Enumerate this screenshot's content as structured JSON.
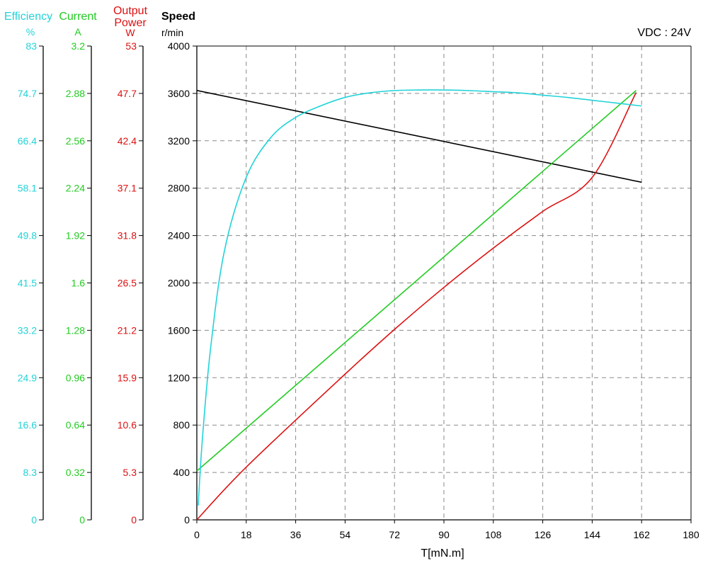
{
  "colors": {
    "efficiency": "#22d3d8",
    "current": "#22cc22",
    "power": "#dd1111",
    "speed": "#000000",
    "grid": "#8a8a8a"
  },
  "headers": {
    "efficiency": {
      "title": "Efficiency",
      "unit": "%"
    },
    "current": {
      "title": "Current",
      "unit": "A"
    },
    "power": {
      "title_line1": "Output",
      "title_line2": "Power",
      "unit": "W"
    },
    "speed": {
      "title": "Speed",
      "unit": "r/min"
    }
  },
  "vdc_label": "VDC : 24V",
  "chart_data": {
    "type": "line",
    "xlabel": "T[mN.m]",
    "xlim": [
      0,
      180
    ],
    "x_ticks": [
      "0",
      "18",
      "36",
      "54",
      "72",
      "90",
      "108",
      "126",
      "144",
      "162",
      "180"
    ],
    "axes": {
      "speed": {
        "label": "Speed",
        "unit": "r/min",
        "range": [
          0,
          4000
        ],
        "ticks": [
          "0",
          "400",
          "800",
          "1200",
          "1600",
          "2000",
          "2400",
          "2800",
          "3200",
          "3600",
          "4000"
        ]
      },
      "efficiency": {
        "label": "Efficiency",
        "unit": "%",
        "range": [
          0,
          83
        ],
        "ticks": [
          "0",
          "8.3",
          "16.6",
          "24.9",
          "33.2",
          "41.5",
          "49.8",
          "58.1",
          "66.4",
          "74.7",
          "83"
        ]
      },
      "current": {
        "label": "Current",
        "unit": "A",
        "range": [
          0,
          3.2
        ],
        "ticks": [
          "0",
          "0.32",
          "0.64",
          "0.96",
          "1.28",
          "1.6",
          "1.92",
          "2.24",
          "2.56",
          "2.88",
          "3.2"
        ]
      },
      "power": {
        "label": "Output Power",
        "unit": "W",
        "range": [
          0,
          53
        ],
        "ticks": [
          "0",
          "5.3",
          "10.6",
          "15.9",
          "21.2",
          "26.5",
          "31.8",
          "37.1",
          "42.4",
          "47.7",
          "53"
        ]
      }
    },
    "series": [
      {
        "axis": "speed",
        "color": "#000000",
        "x": [
          0,
          162
        ],
        "y": [
          3625,
          2850
        ]
      },
      {
        "axis": "current",
        "color": "#22cc22",
        "x": [
          0,
          160
        ],
        "y": [
          0.33,
          2.9
        ]
      },
      {
        "axis": "power",
        "color": "#dd1111",
        "x": [
          0,
          18,
          54,
          72,
          90,
          108,
          126,
          144,
          160
        ],
        "y": [
          0,
          5.9,
          16.3,
          21.3,
          26.0,
          30.4,
          34.5,
          38.3,
          47.8
        ]
      },
      {
        "axis": "efficiency",
        "color": "#22d3d8",
        "x": [
          0.5,
          2,
          5,
          10,
          18,
          27,
          36,
          45,
          54,
          63,
          72,
          81,
          90,
          99,
          108,
          117,
          126,
          135,
          144,
          153,
          162
        ],
        "y": [
          2.5,
          14.0,
          30.0,
          47.0,
          60.0,
          67.0,
          70.5,
          72.5,
          74.0,
          74.8,
          75.2,
          75.3,
          75.3,
          75.2,
          75.0,
          74.8,
          74.4,
          74.0,
          73.5,
          73.0,
          72.5
        ]
      }
    ],
    "grid": true
  }
}
